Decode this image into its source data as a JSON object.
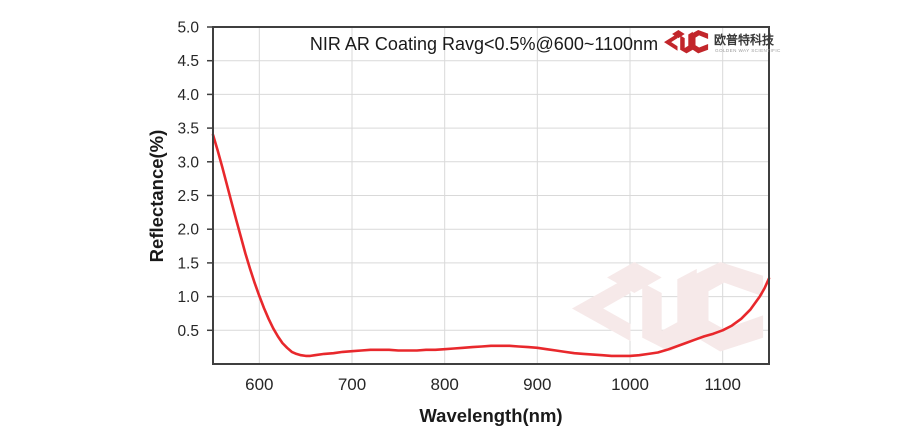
{
  "colors": {
    "curve": "#e8282c",
    "grid": "#d9d9d9",
    "border": "#3f3f3f",
    "text": "#262626",
    "logo_red": "#c2262b",
    "watermark": "#f6e9e9"
  },
  "logo": {
    "company_zh": "欧普特科技",
    "company_en": "GOLDEN WAY SCIENTIFIC"
  },
  "chart_data": {
    "type": "line",
    "title": "NIR AR Coating Ravg<0.5%@600~1100nm",
    "xlabel": "Wavelength(nm)",
    "ylabel": "Reflectance(%)",
    "xlim": [
      550,
      1150
    ],
    "ylim": [
      0,
      5
    ],
    "grid": true,
    "legend": "none",
    "x_ticks": [
      "600",
      "700",
      "800",
      "900",
      "1000",
      "1100"
    ],
    "y_ticks": [
      "0.5",
      "1.0",
      "1.5",
      "2.0",
      "2.5",
      "3.0",
      "3.5",
      "4.0",
      "4.5",
      "5.0"
    ],
    "series": [
      {
        "name": "Reflectance",
        "color": "#e8282c",
        "points": [
          [
            550,
            3.4
          ],
          [
            555,
            3.17
          ],
          [
            560,
            2.92
          ],
          [
            565,
            2.66
          ],
          [
            570,
            2.4
          ],
          [
            575,
            2.14
          ],
          [
            580,
            1.89
          ],
          [
            585,
            1.64
          ],
          [
            590,
            1.41
          ],
          [
            595,
            1.2
          ],
          [
            600,
            1.01
          ],
          [
            605,
            0.83
          ],
          [
            610,
            0.67
          ],
          [
            615,
            0.53
          ],
          [
            620,
            0.41
          ],
          [
            625,
            0.31
          ],
          [
            630,
            0.24
          ],
          [
            635,
            0.18
          ],
          [
            640,
            0.15
          ],
          [
            645,
            0.13
          ],
          [
            650,
            0.12
          ],
          [
            655,
            0.12
          ],
          [
            660,
            0.13
          ],
          [
            670,
            0.15
          ],
          [
            680,
            0.16
          ],
          [
            690,
            0.18
          ],
          [
            700,
            0.19
          ],
          [
            710,
            0.2
          ],
          [
            720,
            0.21
          ],
          [
            730,
            0.21
          ],
          [
            740,
            0.21
          ],
          [
            750,
            0.2
          ],
          [
            760,
            0.2
          ],
          [
            770,
            0.2
          ],
          [
            780,
            0.21
          ],
          [
            790,
            0.21
          ],
          [
            800,
            0.22
          ],
          [
            810,
            0.23
          ],
          [
            820,
            0.24
          ],
          [
            830,
            0.25
          ],
          [
            840,
            0.26
          ],
          [
            850,
            0.27
          ],
          [
            860,
            0.27
          ],
          [
            870,
            0.27
          ],
          [
            880,
            0.26
          ],
          [
            890,
            0.25
          ],
          [
            900,
            0.24
          ],
          [
            910,
            0.22
          ],
          [
            920,
            0.2
          ],
          [
            930,
            0.18
          ],
          [
            940,
            0.16
          ],
          [
            950,
            0.15
          ],
          [
            960,
            0.14
          ],
          [
            970,
            0.13
          ],
          [
            980,
            0.12
          ],
          [
            990,
            0.12
          ],
          [
            1000,
            0.12
          ],
          [
            1010,
            0.13
          ],
          [
            1020,
            0.15
          ],
          [
            1030,
            0.17
          ],
          [
            1040,
            0.21
          ],
          [
            1050,
            0.26
          ],
          [
            1060,
            0.31
          ],
          [
            1070,
            0.36
          ],
          [
            1080,
            0.41
          ],
          [
            1090,
            0.45
          ],
          [
            1100,
            0.5
          ],
          [
            1110,
            0.57
          ],
          [
            1120,
            0.67
          ],
          [
            1130,
            0.81
          ],
          [
            1140,
            1.0
          ],
          [
            1145,
            1.12
          ],
          [
            1150,
            1.27
          ]
        ]
      }
    ]
  }
}
